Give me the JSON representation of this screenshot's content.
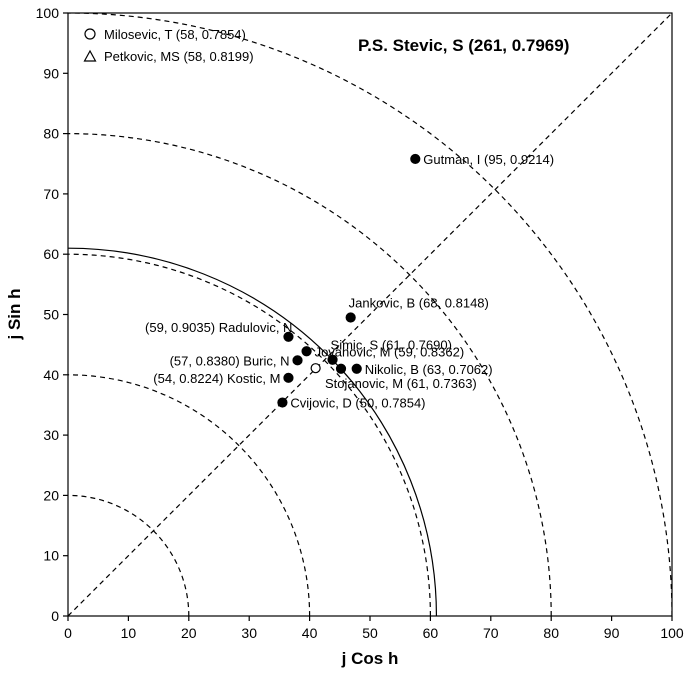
{
  "chart_data": {
    "type": "scatter",
    "title": "P.S.  Stevic, S (261, 0.7969)",
    "xlabel": "j Cos h",
    "ylabel": "j Sin h",
    "xlim": [
      0,
      100
    ],
    "ylim": [
      0,
      100
    ],
    "x_ticks": [
      "0",
      "10",
      "20",
      "30",
      "40",
      "50",
      "60",
      "70",
      "80",
      "90",
      "100"
    ],
    "y_ticks": [
      "0",
      "10",
      "20",
      "30",
      "40",
      "50",
      "60",
      "70",
      "80",
      "90",
      "100"
    ],
    "grid": false,
    "legend": {
      "placement": "top-left",
      "entries": [
        {
          "marker": "circle-open",
          "label": "Milosevic, T (58, 0.7854)"
        },
        {
          "marker": "triangle-open",
          "label": "Petkovic, MS (58, 0.8199)"
        }
      ]
    },
    "reference_arcs_dashed": [
      20,
      40,
      60,
      80,
      100
    ],
    "reference_arc_solid": 61,
    "reference_diagonal": {
      "from": [
        0,
        0
      ],
      "to": [
        100,
        100
      ]
    },
    "points": [
      {
        "x": 57.5,
        "y": 75.8,
        "marker": "filled",
        "label": "Gutman, I (95, 0.9214)",
        "anchor": "right"
      },
      {
        "x": 46.8,
        "y": 49.5,
        "marker": "filled",
        "label": "Jankovic, B (68, 0.8148)",
        "anchor": "above-right"
      },
      {
        "x": 36.5,
        "y": 46.3,
        "marker": "filled",
        "label": "(59, 0.9035) Radulovic, N",
        "anchor": "above-left"
      },
      {
        "x": 39.5,
        "y": 43.9,
        "marker": "filled",
        "label": "Jovanovic, M (59, 0.8362)",
        "anchor": "right"
      },
      {
        "x": 43.8,
        "y": 42.5,
        "marker": "filled",
        "label": "Simic, S (61, 0.7690)",
        "anchor": "above-right"
      },
      {
        "x": 38.0,
        "y": 42.4,
        "marker": "filled",
        "label": "(57, 0.8380) Buric, N",
        "anchor": "left"
      },
      {
        "x": 45.2,
        "y": 41.0,
        "marker": "filled",
        "label": "Stojanovic, M (61, 0.7363)",
        "anchor": "below-right"
      },
      {
        "x": 47.8,
        "y": 41.0,
        "marker": "filled",
        "label": "Nikolic, B (63, 0.7062)",
        "anchor": "right"
      },
      {
        "x": 41.0,
        "y": 41.1,
        "marker": "open",
        "label": "",
        "anchor": "none"
      },
      {
        "x": 36.5,
        "y": 39.5,
        "marker": "filled",
        "label": "(54, 0.8224) Kostic, M",
        "anchor": "left"
      },
      {
        "x": 35.5,
        "y": 35.4,
        "marker": "filled",
        "label": "Cvijovic, D (50, 0.7854)",
        "anchor": "right"
      }
    ]
  }
}
